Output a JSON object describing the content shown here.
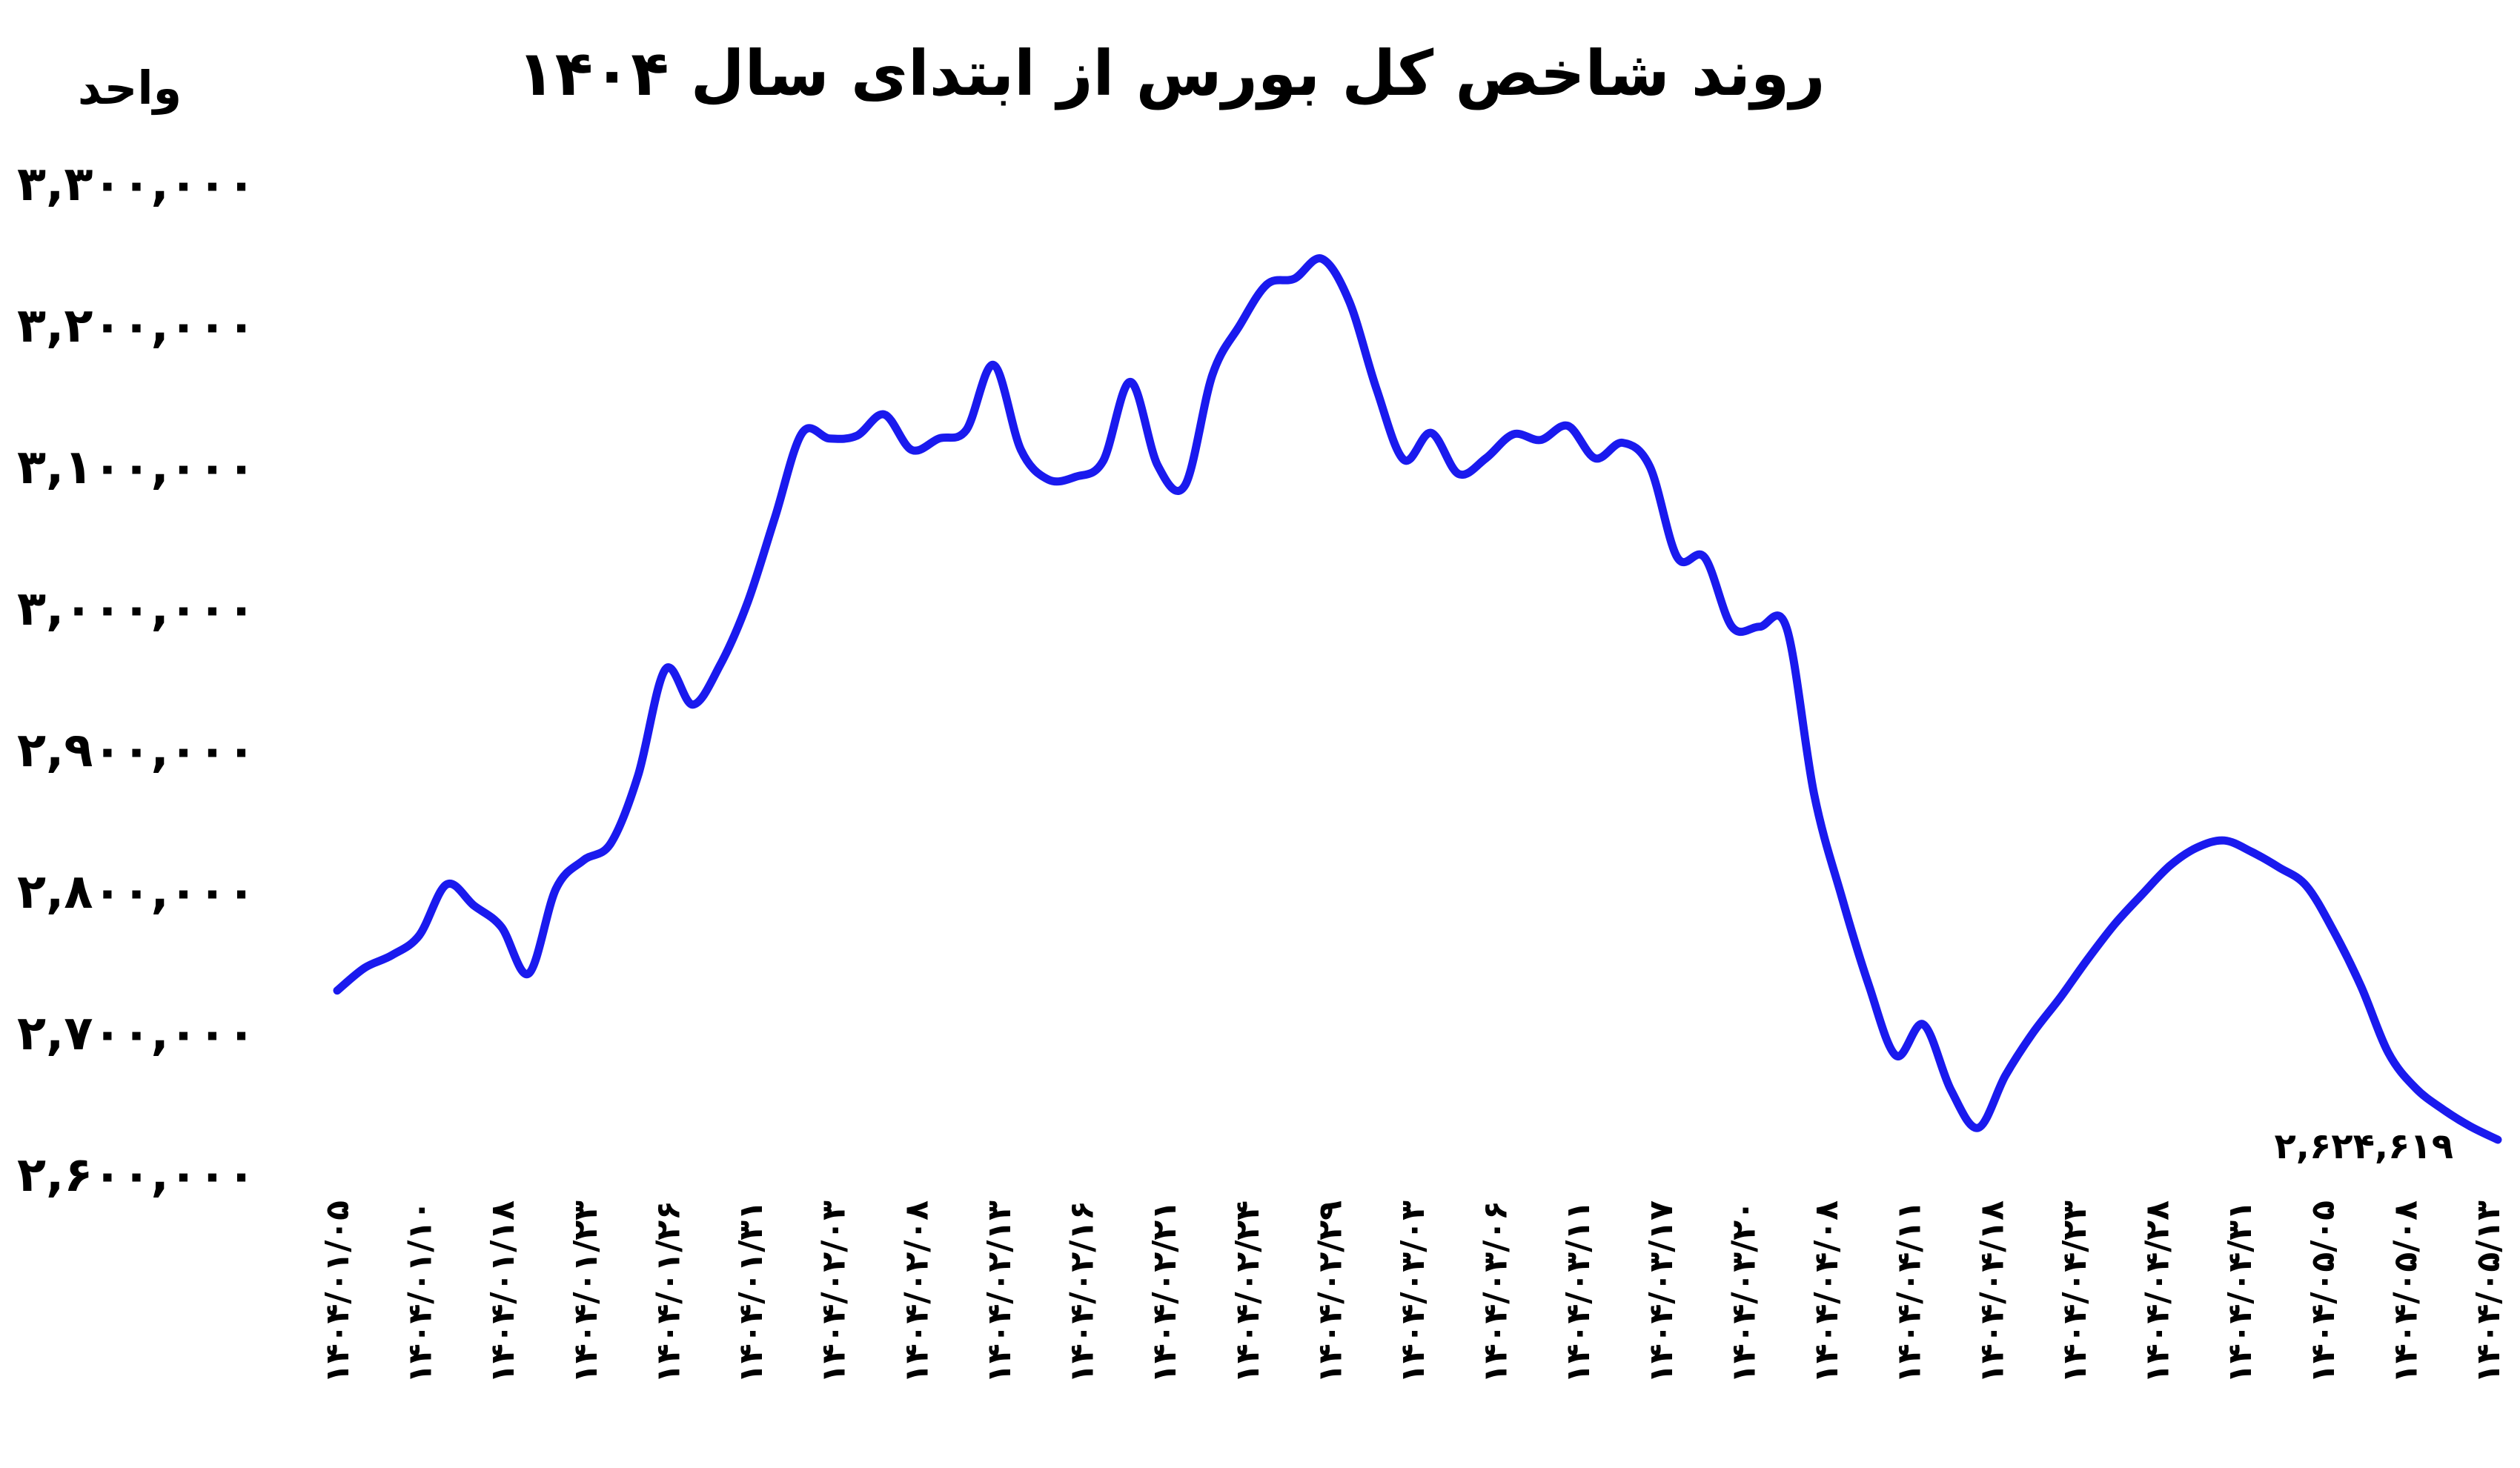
{
  "chart_data": {
    "type": "line",
    "title": "روند شاخص کل بورس از ابتدای سال ۱۴۰۴",
    "ylabel": "واحد",
    "xlabel": "",
    "ylim": [
      2600000,
      3300000
    ],
    "y_ticks": [
      3300000,
      3200000,
      3100000,
      3000000,
      2900000,
      2800000,
      2700000,
      2600000
    ],
    "y_tick_labels": [
      "۳,۳۰۰,۰۰۰",
      "۳,۲۰۰,۰۰۰",
      "۳,۱۰۰,۰۰۰",
      "۳,۰۰۰,۰۰۰",
      "۲,۹۰۰,۰۰۰",
      "۲,۸۰۰,۰۰۰",
      "۲,۷۰۰,۰۰۰",
      "۲,۶۰۰,۰۰۰"
    ],
    "x_ticks": [
      "۱۴۰۴/۰۱/۰۵",
      "۱۴۰۴/۰۱/۱۰",
      "۱۴۰۴/۰۱/۱۸",
      "۱۴۰۴/۰۱/۲۳",
      "۱۴۰۴/۰۱/۲۶",
      "۱۴۰۴/۰۱/۳۱",
      "۱۴۰۴/۰۲/۰۳",
      "۱۴۰۴/۰۲/۰۸",
      "۱۴۰۴/۰۲/۱۳",
      "۱۴۰۴/۰۲/۱۶",
      "۱۴۰۴/۰۲/۲۱",
      "۱۴۰۴/۰۲/۲۴",
      "۱۴۰۴/۰۲/۲۹",
      "۱۴۰۴/۰۳/۰۳",
      "۱۴۰۴/۰۳/۰۶",
      "۱۴۰۴/۰۳/۱۱",
      "۱۴۰۴/۰۳/۱۷",
      "۱۴۰۴/۰۳/۲۰",
      "۱۴۰۴/۰۴/۰۸",
      "۱۴۰۴/۰۴/۱۱",
      "۱۴۰۴/۰۴/۱۸",
      "۱۴۰۴/۰۴/۲۳",
      "۱۴۰۴/۰۴/۲۸",
      "۱۴۰۴/۰۴/۳۱",
      "۱۴۰۴/۰۵/۰۵",
      "۱۴۰۴/۰۵/۰۸",
      "۱۴۰۴/۰۵/۱۳"
    ],
    "series": [
      {
        "name": "",
        "color": "#1a1aee",
        "values": [
          2730000,
          2746000,
          2755000,
          2769000,
          2805000,
          2790000,
          2775000,
          2742000,
          2802000,
          2822000,
          2834000,
          2882000,
          2957000,
          2932000,
          2960000,
          3004000,
          3064000,
          3124000,
          3120000,
          3122000,
          3137000,
          3112000,
          3120000,
          3126000,
          3172000,
          3112000,
          3091000,
          3093000,
          3104000,
          3160000,
          3101000,
          3087000,
          3165000,
          3200000,
          3229000,
          3233000,
          3247000,
          3217000,
          3155000,
          3105000,
          3124000,
          3095000,
          3106000,
          3123000,
          3119000,
          3129000,
          3106000,
          3117000,
          3100000,
          3036000,
          3036000,
          2987000,
          2987000,
          2986000,
          2869000,
          2797000,
          2734000,
          2684000,
          2706000,
          2660000,
          2633000,
          2670000,
          2700000,
          2725000,
          2752000,
          2777000,
          2798000,
          2818000,
          2831000,
          2836000,
          2828000,
          2817000,
          2804000,
          2772000,
          2733000,
          2686000,
          2661000,
          2646000,
          2634000,
          2624619
        ]
      }
    ],
    "annotations": [
      {
        "text": "۲,۶۲۴,۶۱۹",
        "x_index": 79,
        "value": 2624619
      }
    ],
    "grid": false,
    "legend": "none"
  }
}
